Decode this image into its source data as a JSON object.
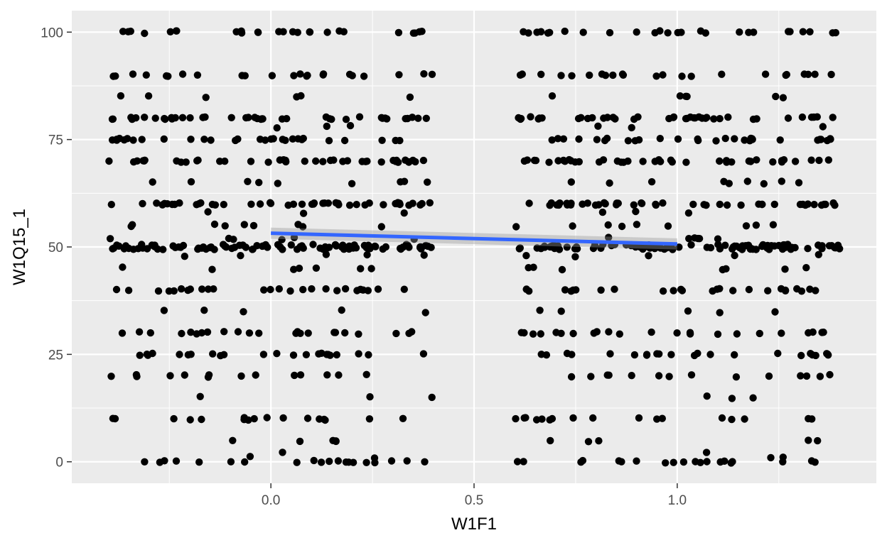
{
  "chart_data": {
    "type": "scatter",
    "title": "",
    "xlabel": "W1F1",
    "ylabel": "W1Q15_1",
    "xlim": [
      -0.49,
      1.49
    ],
    "ylim": [
      -5,
      105
    ],
    "x_ticks": [
      0.0,
      0.5,
      1.0
    ],
    "x_tick_labels": [
      "0.0",
      "0.5",
      "1.0"
    ],
    "y_ticks": [
      0,
      25,
      50,
      75,
      100
    ],
    "y_tick_labels": [
      "0",
      "25",
      "50",
      "75",
      "100"
    ],
    "grid": true,
    "legend": "none",
    "jitter_groups": [
      {
        "x_center": 0,
        "x_spread": 0.4
      },
      {
        "x_center": 1,
        "x_spread": 0.4
      }
    ],
    "point_levels": [
      {
        "y": 0,
        "weight": 3.5,
        "jitter": 0.3
      },
      {
        "y": 1,
        "weight": 0.3,
        "jitter": 0.3
      },
      {
        "y": 2,
        "weight": 0.2,
        "jitter": 0.3
      },
      {
        "y": 5,
        "weight": 0.8,
        "jitter": 0.3
      },
      {
        "y": 10,
        "weight": 3,
        "jitter": 0.3
      },
      {
        "y": 15,
        "weight": 0.5,
        "jitter": 0.3
      },
      {
        "y": 20,
        "weight": 2.5,
        "jitter": 0.3
      },
      {
        "y": 25,
        "weight": 4,
        "jitter": 0.3
      },
      {
        "y": 30,
        "weight": 4,
        "jitter": 0.3
      },
      {
        "y": 35,
        "weight": 0.8,
        "jitter": 0.3
      },
      {
        "y": 40,
        "weight": 4.5,
        "jitter": 0.3
      },
      {
        "y": 45,
        "weight": 1.2,
        "jitter": 0.3
      },
      {
        "y": 48,
        "weight": 0.8,
        "jitter": 0.3
      },
      {
        "y": 50,
        "weight": 16,
        "jitter": 0.6
      },
      {
        "y": 52,
        "weight": 1,
        "jitter": 0.3
      },
      {
        "y": 55,
        "weight": 1.5,
        "jitter": 0.3
      },
      {
        "y": 58,
        "weight": 0.6,
        "jitter": 0.3
      },
      {
        "y": 60,
        "weight": 8,
        "jitter": 0.3
      },
      {
        "y": 65,
        "weight": 1.5,
        "jitter": 0.3
      },
      {
        "y": 70,
        "weight": 7,
        "jitter": 0.3
      },
      {
        "y": 75,
        "weight": 5,
        "jitter": 0.3
      },
      {
        "y": 78,
        "weight": 0.5,
        "jitter": 0.3
      },
      {
        "y": 80,
        "weight": 7,
        "jitter": 0.3
      },
      {
        "y": 85,
        "weight": 1,
        "jitter": 0.3
      },
      {
        "y": 90,
        "weight": 4,
        "jitter": 0.3
      },
      {
        "y": 100,
        "weight": 4.5,
        "jitter": 0.3
      }
    ],
    "points_per_group": 480,
    "smooth_line": {
      "method": "lm",
      "x": [
        0,
        1
      ],
      "y": [
        53.2,
        50.7
      ],
      "ci_halfwidth": [
        1.3,
        1.3
      ],
      "color": "#3366FF",
      "ribbon_color": "#999999"
    },
    "colors": {
      "panel_background": "#EBEBEB",
      "grid_major": "#FFFFFF",
      "point": "#000000",
      "axis_text": "#4D4D4D"
    }
  }
}
